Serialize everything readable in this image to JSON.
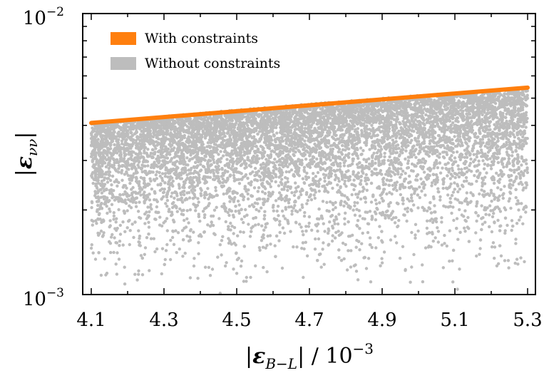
{
  "chart_data": {
    "type": "scatter",
    "xlabel_parts": {
      "open": "|",
      "symbol": "ε",
      "sub": "B−L",
      "close": "| / 10",
      "sup": "−3"
    },
    "ylabel_parts": {
      "open": "|",
      "symbol": "ε",
      "sub": "νν",
      "close": "|"
    },
    "xlim": [
      4.1,
      5.3
    ],
    "ylim": [
      0.001,
      0.01
    ],
    "y_scale": "log",
    "x_ticks": [
      "4.1",
      "4.3",
      "4.5",
      "4.7",
      "4.9",
      "5.1",
      "5.3"
    ],
    "x_tick_values": [
      4.1,
      4.3,
      4.5,
      4.7,
      4.9,
      5.1,
      5.3
    ],
    "y_major_ticks": [
      {
        "value": 0.01,
        "base": "10",
        "exp": "−2"
      },
      {
        "value": 0.001,
        "base": "10",
        "exp": "−3"
      }
    ],
    "legend_position": "top-left",
    "series": [
      {
        "name": "With constraints",
        "kind": "line",
        "color": "#ff7f0e",
        "x": [
          4.1,
          5.3
        ],
        "y": [
          0.00408,
          0.00545
        ]
      },
      {
        "name": "Without constraints",
        "kind": "scatter-region",
        "color": "#bdbdbd",
        "region": {
          "x_range": [
            4.1,
            5.3
          ],
          "y_min": 0.001,
          "y_upper_boundary_x": [
            4.1,
            5.3
          ],
          "y_upper_boundary_y": [
            0.00408,
            0.00545
          ]
        }
      }
    ]
  }
}
